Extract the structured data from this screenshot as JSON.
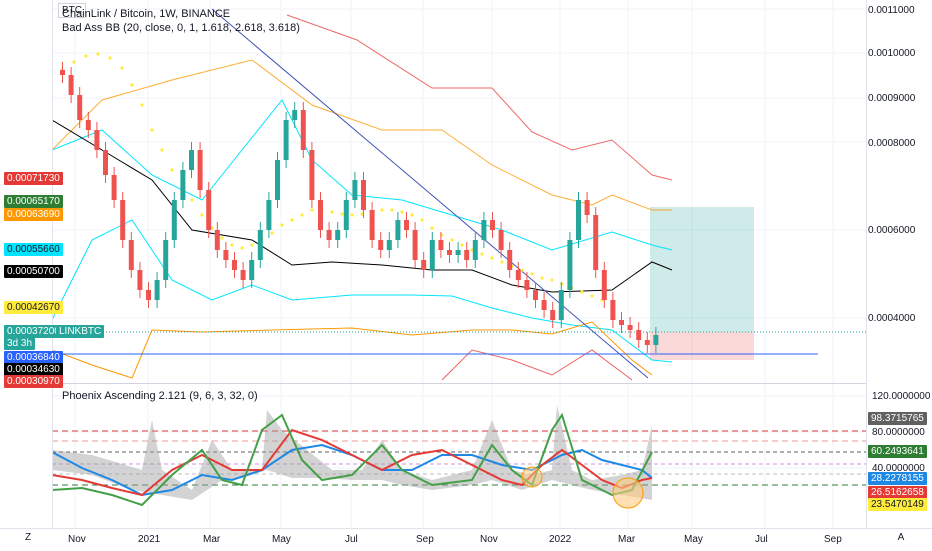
{
  "symbol_button": "BTC",
  "legend": {
    "title": "ChainLink / Bitcoin, 1W, BINANCE",
    "indicator": "Bad Ass BB (20, close, 0, 1, 1.618, 2.618, 3.618)",
    "oscillator": "Phoenix Ascending 2.121 (9, 6, 3, 32, 0)"
  },
  "price_scale": [
    "0.0011000",
    "0.0010000",
    "0.0009000",
    "0.0008000",
    "0.0006000",
    "0.0004000"
  ],
  "price_badges": [
    {
      "text": "0.00071730",
      "color": "#e53935"
    },
    {
      "text": "0.00065170",
      "color": "#2e7d32"
    },
    {
      "text": "0.00063690",
      "color": "#ff9800"
    },
    {
      "text": "0.00055660",
      "color": "#00e5ff"
    },
    {
      "text": "0.00050700",
      "color": "#000000"
    },
    {
      "text": "0.00042670",
      "color": "#ffeb3b"
    },
    {
      "text": "0.00037200",
      "color": "#26a69a"
    },
    {
      "text": "3d 3h",
      "color": "#26a69a"
    },
    {
      "text": "0.00036840",
      "color": "#2962ff"
    },
    {
      "text": "0.00034630",
      "color": "#000000"
    },
    {
      "text": "0.00030970",
      "color": "#e53935"
    }
  ],
  "symbol_tag": "LINKBTC",
  "osc_scale": [
    "120.0000000",
    "80.0000000",
    "40.0000000"
  ],
  "osc_badges": [
    {
      "text": "98.3715765",
      "color": "#616161"
    },
    {
      "text": "60.2493641",
      "color": "#2e7d32"
    },
    {
      "text": "28.2278155",
      "color": "#1e88e5"
    },
    {
      "text": "26.5162658",
      "color": "#e53935"
    },
    {
      "text": "23.5470149",
      "color": "#ffeb3b"
    }
  ],
  "time_axis": [
    "Nov",
    "2021",
    "Mar",
    "May",
    "Jul",
    "Sep",
    "Nov",
    "2022",
    "Mar",
    "May",
    "Jul",
    "Sep"
  ],
  "bottom_left_btn": "Z",
  "bottom_right_btn": "A",
  "colors": {
    "up": "#26a69a",
    "down": "#ef5350",
    "trendline": "#3f51b5",
    "hline": "#2962ff",
    "bb_outer": "#e53935",
    "bb_orange": "#ff9800",
    "bb_cyan": "#00e5ff",
    "bb_mid": "#000000",
    "dots": "#ffeb3b"
  }
}
